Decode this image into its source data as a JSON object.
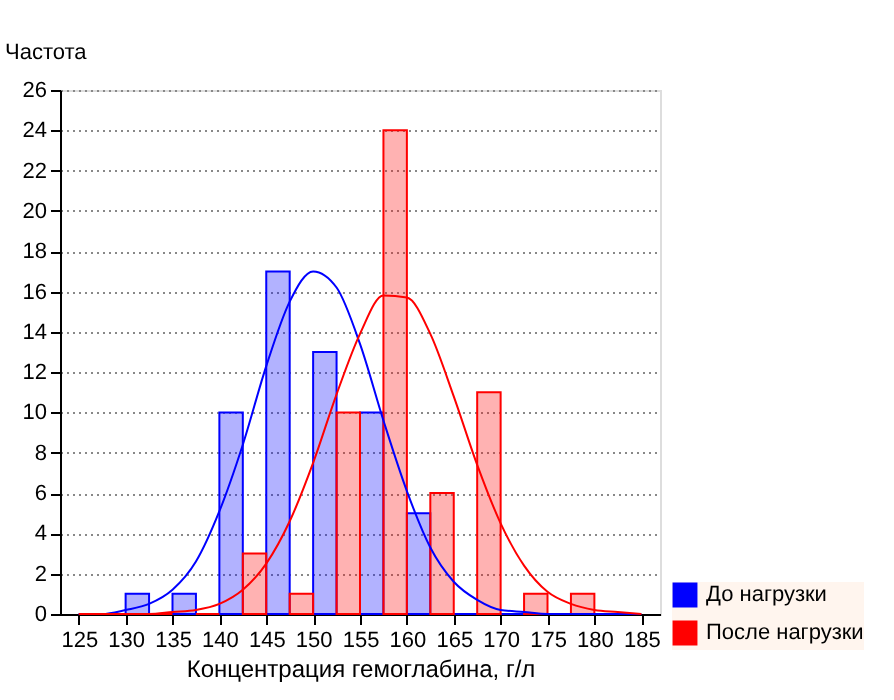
{
  "chart_data": {
    "type": "histogram",
    "xlabel": "Концентрация гемоглабина, г/л",
    "ylabel": "Частота",
    "bins": [
      125,
      130,
      135,
      140,
      145,
      150,
      155,
      160,
      165,
      170,
      175,
      180,
      185
    ],
    "series": [
      {
        "name": "До нагрузки",
        "color": "#0000ff",
        "values": [
          0,
          1,
          1,
          10,
          17,
          13,
          10,
          5,
          0,
          0,
          0,
          0
        ]
      },
      {
        "name": "После нагрузки",
        "color": "#ff0000",
        "values": [
          0,
          0,
          0,
          3,
          1,
          10,
          24,
          6,
          11,
          1,
          1,
          0
        ]
      },
      {
        "type": "line",
        "color": "#0000ff",
        "x": [
          125,
          127.5,
          130,
          132.5,
          135,
          137.5,
          140,
          142.5,
          145,
          147.5,
          150,
          152.5,
          155,
          157.5,
          160,
          162.5,
          165,
          167.5,
          170,
          172.5,
          175,
          177.5,
          180,
          182.5,
          185
        ],
        "values": [
          0,
          0,
          0.2,
          0.5,
          1.2,
          2.6,
          5.1,
          8.4,
          12.3,
          15.5,
          17.0,
          16.2,
          13.4,
          9.6,
          6.1,
          3.3,
          1.6,
          0.7,
          0.2,
          0.1,
          0,
          0,
          0,
          0,
          0
        ]
      },
      {
        "type": "line",
        "color": "#ff0000",
        "x": [
          125,
          127.5,
          130,
          132.5,
          135,
          137.5,
          140,
          142.5,
          145,
          147.5,
          150,
          152.5,
          155,
          157.5,
          160,
          162.5,
          165,
          167.5,
          170,
          172.5,
          175,
          177.5,
          180,
          182.5,
          185
        ],
        "values": [
          0,
          0,
          0,
          0,
          0.1,
          0.2,
          0.5,
          1.2,
          2.5,
          4.6,
          7.5,
          10.9,
          13.9,
          15.8,
          15.7,
          13.9,
          10.8,
          7.4,
          4.5,
          2.4,
          1.1,
          0.5,
          0.2,
          0.1,
          0
        ]
      }
    ],
    "xlim": [
      123,
      187
    ],
    "xticks": [
      125,
      130,
      135,
      140,
      145,
      150,
      155,
      160,
      165,
      170,
      175,
      180,
      185
    ],
    "ylim": [
      0,
      26
    ],
    "yticks": [
      0,
      2,
      4,
      6,
      8,
      10,
      12,
      14,
      16,
      18,
      20,
      22,
      24,
      26
    ],
    "grid": "y",
    "legend": "bottom right"
  }
}
